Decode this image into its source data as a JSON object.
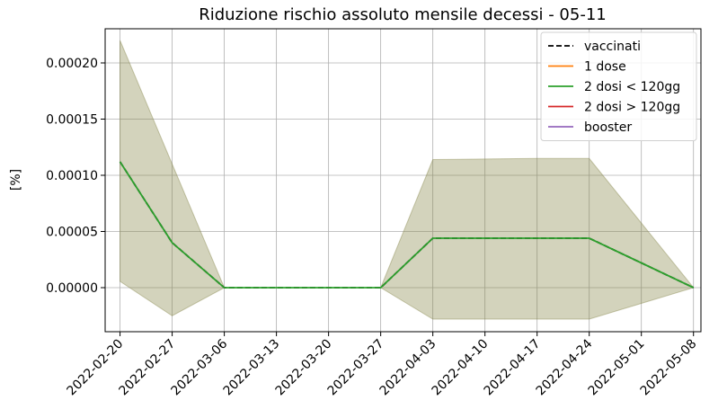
{
  "chart_data": {
    "type": "line",
    "title": "Riduzione rischio assoluto mensile decessi - 05-11",
    "y_label": "[%]",
    "x": [
      "2022-02-20",
      "2022-02-27",
      "2022-03-06",
      "2022-03-13",
      "2022-03-20",
      "2022-03-27",
      "2022-04-03",
      "2022-04-10",
      "2022-04-17",
      "2022-04-24",
      "2022-05-01",
      "2022-05-08"
    ],
    "series": [
      {
        "name": "vaccinati",
        "color": "#000000",
        "dashed": true,
        "values": [
          0.000112,
          4e-05,
          0,
          0,
          0,
          0,
          4.4e-05,
          4.4e-05,
          4.4e-05,
          4.4e-05,
          2.2e-05,
          0
        ]
      },
      {
        "name": "1 dose",
        "color": "#ff7f0e",
        "values": [
          null,
          null,
          null,
          null,
          null,
          null,
          null,
          null,
          null,
          null,
          null,
          null
        ]
      },
      {
        "name": "2 dosi < 120gg",
        "color": "#2ca02c",
        "values": [
          0.000112,
          4e-05,
          0,
          0,
          0,
          0,
          4.4e-05,
          4.4e-05,
          4.4e-05,
          4.4e-05,
          2.2e-05,
          0
        ]
      },
      {
        "name": "2 dosi > 120gg",
        "color": "#d62728",
        "values": [
          null,
          null,
          null,
          null,
          null,
          null,
          null,
          null,
          null,
          null,
          null,
          null
        ]
      },
      {
        "name": "booster",
        "color": "#9467bd",
        "values": [
          null,
          null,
          null,
          null,
          null,
          null,
          null,
          null,
          null,
          null,
          null,
          null
        ]
      }
    ],
    "band": {
      "color": "#808040",
      "upper": [
        0.00022,
        0.00011,
        0,
        0,
        0,
        0,
        0.000114,
        0.0001145,
        0.000115,
        0.000115,
        5.75e-05,
        0
      ],
      "lower": [
        5.6e-06,
        -2.5e-05,
        0,
        0,
        0,
        0,
        -2.8e-05,
        -2.8e-05,
        -2.8e-05,
        -2.8e-05,
        -1.4e-05,
        0
      ]
    },
    "xlim": [
      "2022-02-18",
      "2022-05-09"
    ],
    "xticks": [
      "2022-02-20",
      "2022-02-27",
      "2022-03-06",
      "2022-03-13",
      "2022-03-20",
      "2022-03-27",
      "2022-04-03",
      "2022-04-10",
      "2022-04-17",
      "2022-04-24",
      "2022-05-01",
      "2022-05-08"
    ],
    "ylim": [
      -3.92e-05,
      0.0002304
    ],
    "yticks": [
      {
        "value": 0,
        "label": "0.00000"
      },
      {
        "value": 5e-05,
        "label": "0.00005"
      },
      {
        "value": 0.0001,
        "label": "0.00010"
      },
      {
        "value": 0.00015,
        "label": "0.00015"
      },
      {
        "value": 0.0002,
        "label": "0.00020"
      }
    ],
    "grid": true,
    "legend": "upper right"
  }
}
